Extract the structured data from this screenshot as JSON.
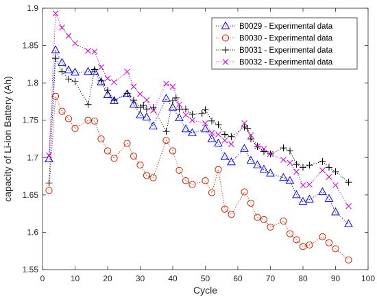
{
  "chart_data": {
    "type": "line",
    "title": "",
    "xlabel": "Cycle",
    "ylabel": "capacity of Li-ion Battery (Ah)",
    "xlim": [
      0,
      100
    ],
    "ylim": [
      1.55,
      1.9
    ],
    "xticks": [
      "0",
      "10",
      "20",
      "30",
      "40",
      "50",
      "60",
      "70",
      "80",
      "90",
      "100"
    ],
    "yticks": [
      "1.55",
      "1.6",
      "1.65",
      "1.7",
      "1.75",
      "1.8",
      "1.85",
      "1.9"
    ],
    "grid": false,
    "legend_position": "top-right",
    "series": [
      {
        "name": "B0029 - Experimental data",
        "color": "#0000ff",
        "marker": "triangle",
        "x": [
          2,
          4,
          6,
          8,
          10,
          14,
          16,
          18,
          20,
          22,
          26,
          28,
          30,
          32,
          34,
          38,
          40,
          42,
          44,
          46,
          50,
          52,
          54,
          56,
          58,
          62,
          64,
          66,
          68,
          70,
          74,
          76,
          78,
          80,
          82,
          86,
          88,
          90,
          94
        ],
        "y": [
          1.698,
          1.844,
          1.827,
          1.817,
          1.814,
          1.815,
          1.815,
          1.801,
          1.784,
          1.776,
          1.785,
          1.771,
          1.757,
          1.754,
          1.742,
          1.779,
          1.767,
          1.753,
          1.738,
          1.733,
          1.738,
          1.725,
          1.719,
          1.701,
          1.694,
          1.712,
          1.696,
          1.69,
          1.684,
          1.679,
          1.673,
          1.669,
          1.65,
          1.641,
          1.644,
          1.654,
          1.645,
          1.627,
          1.611
        ]
      },
      {
        "name": "B0030 - Experimental data",
        "color": "#cc2200",
        "marker": "circle",
        "x": [
          2,
          4,
          6,
          8,
          10,
          14,
          16,
          18,
          20,
          22,
          26,
          28,
          30,
          32,
          34,
          38,
          40,
          42,
          44,
          46,
          50,
          52,
          54,
          56,
          58,
          62,
          64,
          66,
          68,
          70,
          74,
          76,
          78,
          80,
          82,
          86,
          88,
          90,
          94
        ],
        "y": [
          1.656,
          1.782,
          1.762,
          1.752,
          1.739,
          1.75,
          1.749,
          1.725,
          1.709,
          1.699,
          1.719,
          1.702,
          1.69,
          1.676,
          1.673,
          1.723,
          1.709,
          1.683,
          1.669,
          1.664,
          1.669,
          1.653,
          1.684,
          1.631,
          1.624,
          1.654,
          1.639,
          1.62,
          1.617,
          1.607,
          1.615,
          1.598,
          1.59,
          1.581,
          1.583,
          1.594,
          1.586,
          1.578,
          1.563
        ]
      },
      {
        "name": "B0031 - Experimental data",
        "color": "#000000",
        "marker": "plus",
        "x": [
          2,
          4,
          6,
          8,
          10,
          14,
          16,
          18,
          20,
          22,
          26,
          28,
          30,
          31,
          32,
          34,
          38,
          40,
          41,
          42,
          44,
          46,
          49,
          50,
          52,
          54,
          56,
          58,
          62,
          63,
          64,
          66,
          68,
          70,
          74,
          76,
          78,
          80,
          82,
          86,
          88,
          90,
          94
        ],
        "y": [
          1.666,
          1.833,
          1.815,
          1.805,
          1.802,
          1.771,
          1.818,
          1.803,
          1.79,
          1.777,
          1.786,
          1.777,
          1.767,
          1.77,
          1.765,
          1.767,
          1.735,
          1.776,
          1.78,
          1.765,
          1.765,
          1.758,
          1.759,
          1.764,
          1.749,
          1.744,
          1.731,
          1.728,
          1.741,
          1.739,
          1.725,
          1.715,
          1.708,
          1.705,
          1.713,
          1.709,
          1.691,
          1.687,
          1.69,
          1.695,
          1.687,
          1.681,
          1.667
        ]
      },
      {
        "name": "B0032 - Experimental data",
        "color": "#cc00cc",
        "marker": "x",
        "x": [
          2,
          4,
          6,
          8,
          10,
          14,
          16,
          18,
          20,
          22,
          26,
          28,
          30,
          32,
          34,
          38,
          40,
          42,
          44,
          46,
          50,
          52,
          54,
          56,
          58,
          62,
          64,
          66,
          68,
          70,
          74,
          76,
          78,
          80,
          82,
          86,
          88,
          90,
          94
        ],
        "y": [
          1.703,
          1.893,
          1.874,
          1.863,
          1.853,
          1.843,
          1.842,
          1.821,
          1.806,
          1.801,
          1.815,
          1.795,
          1.785,
          1.777,
          1.763,
          1.799,
          1.795,
          1.771,
          1.757,
          1.75,
          1.746,
          1.733,
          1.731,
          1.723,
          1.718,
          1.746,
          1.73,
          1.715,
          1.712,
          1.705,
          1.697,
          1.693,
          1.681,
          1.663,
          1.664,
          1.683,
          1.674,
          1.663,
          1.635
        ]
      }
    ]
  }
}
